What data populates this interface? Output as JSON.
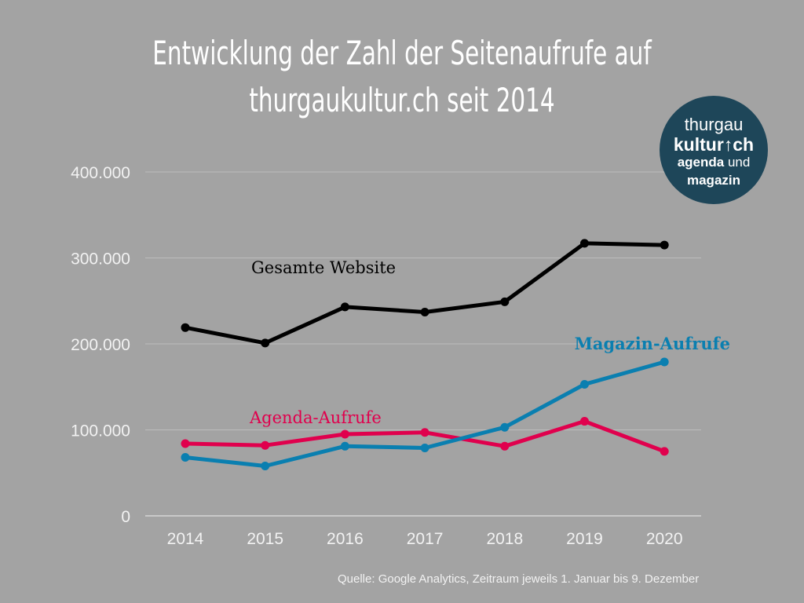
{
  "title_line1": "Entwicklung der Zahl der Seitenaufrufe auf",
  "title_line2": "thurgaukultur.ch seit 2014",
  "logo": {
    "line1": "thurgau",
    "line2": "kultur↑ch",
    "line3_bold": "agenda",
    "line3_rest": " und",
    "line4": "magazin",
    "color": "#1e4659"
  },
  "source": "Quelle: Google Analytics, Zeitraum jeweils 1. Januar bis 9. Dezember",
  "chart_data": {
    "type": "line",
    "title": "Entwicklung der Zahl der Seitenaufrufe auf thurgaukultur.ch seit 2014",
    "x": [
      "2014",
      "2015",
      "2016",
      "2017",
      "2018",
      "2019",
      "2020"
    ],
    "ylim": [
      0,
      400000
    ],
    "yticks": [
      0,
      100000,
      200000,
      300000,
      400000
    ],
    "ytick_labels": [
      "0",
      "100.000",
      "200.000",
      "300.000",
      "400.000"
    ],
    "grid": true,
    "series": [
      {
        "name": "Gesamte Website",
        "color": "#000000",
        "values": [
          219000,
          201000,
          243000,
          237000,
          249000,
          317000,
          315000
        ]
      },
      {
        "name": "Agenda-Aufrufe",
        "color": "#e0004d",
        "values": [
          84000,
          82000,
          95000,
          97000,
          81000,
          110000,
          75000
        ]
      },
      {
        "name": "Magazin-Aufrufe",
        "color": "#0a7fb0",
        "values": [
          68000,
          58000,
          81000,
          79000,
          103000,
          153000,
          179000
        ]
      }
    ]
  }
}
